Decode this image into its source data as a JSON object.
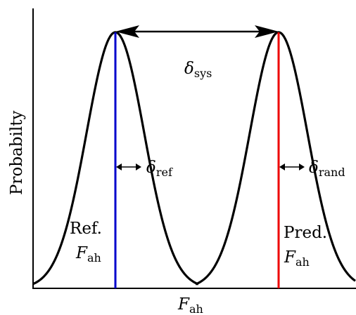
{
  "diagram": {
    "y_axis_label": "Probabilty",
    "x_axis_label": {
      "main": "F",
      "sub": "ah"
    },
    "labels": {
      "sys": {
        "main": "δ",
        "sub": "sys"
      },
      "ref": {
        "main": "δ",
        "sub": "ref"
      },
      "rand": {
        "main": "δ",
        "sub": "rand"
      },
      "ref_f": {
        "word": "Ref.",
        "main": "F",
        "sub": "ah"
      },
      "pred_f": {
        "word": "Pred.",
        "main": "F",
        "sub": "ah"
      }
    },
    "colors": {
      "curve": "#000000",
      "ref_line": "#0000cc",
      "pred_line": "#ee0000",
      "axes": "#000000"
    }
  }
}
